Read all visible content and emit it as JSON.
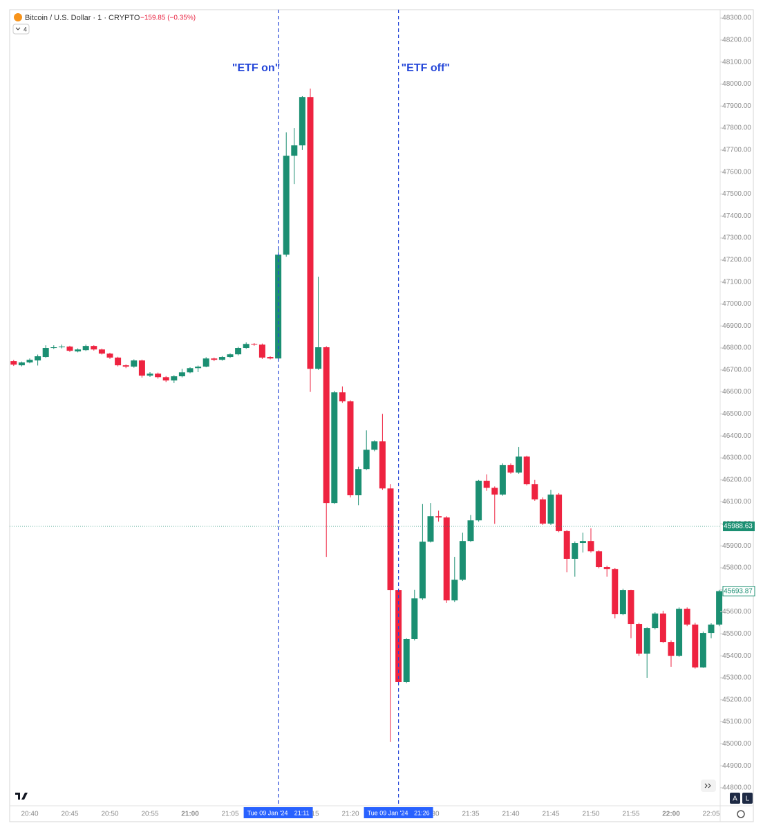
{
  "chart_data": {
    "type": "candlestick",
    "title": "Bitcoin / U.S. Dollar · 1 · CRYPTO",
    "change": "−159.85 (−0.35%)",
    "indicator_count": "4",
    "up_color": "#1b8f72",
    "down_color": "#ee2340",
    "categories": [
      null,
      null,
      "20:40",
      null,
      null,
      null,
      null,
      "20:45",
      null,
      null,
      null,
      null,
      "20:50",
      null,
      null,
      null,
      null,
      "20:55",
      null,
      null,
      null,
      null,
      "21:00",
      null,
      null,
      null,
      null,
      "21:05",
      null,
      null,
      null,
      null,
      "21:10",
      null,
      null,
      null,
      null,
      "21:15",
      null,
      null,
      null,
      null,
      "21:20",
      null,
      null,
      null,
      null,
      "21:25",
      null,
      null,
      null,
      null,
      "21:30",
      null,
      null,
      null,
      null,
      "21:35",
      null,
      null,
      null,
      null,
      "21:40",
      null,
      null,
      null,
      null,
      "21:45",
      null,
      null,
      null,
      null,
      "21:50",
      null,
      null,
      null,
      null,
      "21:55",
      null,
      null,
      null,
      null,
      "22:00",
      null,
      null,
      null,
      null,
      "22:05",
      null
    ],
    "open": [
      46740,
      46721,
      46734,
      46743,
      46759,
      46800,
      46803,
      46806,
      46784,
      46790,
      46809,
      46793,
      46774,
      46756,
      46721,
      46715,
      46743,
      46674,
      46683,
      46667,
      46652,
      46671,
      46689,
      46708,
      46715,
      46752,
      46746,
      46759,
      46771,
      46800,
      46818,
      46815,
      46759,
      46752,
      47224,
      47674,
      47721,
      47941,
      46705,
      46803,
      46095,
      46598,
      46557,
      46130,
      46249,
      46337,
      46375,
      46161,
      45699,
      45281,
      45476,
      45661,
      45919,
      46035,
      46029,
      45652,
      45746,
      45922,
      46016,
      46196,
      46164,
      46133,
      46268,
      46233,
      46306,
      46180,
      46111,
      46001,
      46133,
      45967,
      45841,
      45913,
      45922,
      45875,
      45803,
      45794,
      45589,
      45699,
      45545,
      45410,
      45526,
      45592,
      45463,
      45400,
      45614,
      45542,
      45347,
      45504,
      45542
    ],
    "high": [
      46745,
      46738,
      46752,
      46770,
      46812,
      46812,
      46815,
      46810,
      46798,
      46815,
      46812,
      46797,
      46778,
      46760,
      46725,
      46748,
      46747,
      46690,
      46688,
      46672,
      46676,
      46705,
      46712,
      46720,
      46758,
      46756,
      46763,
      46775,
      46805,
      46825,
      46822,
      46820,
      46762,
      47250,
      47780,
      47800,
      47945,
      47979,
      47124,
      46808,
      46605,
      46625,
      46562,
      46260,
      46425,
      46380,
      46500,
      46180,
      45705,
      45480,
      45700,
      46090,
      46095,
      46060,
      46035,
      45850,
      45960,
      46040,
      46200,
      46225,
      46170,
      46275,
      46275,
      46350,
      46310,
      46200,
      46120,
      46155,
      46140,
      45972,
      45920,
      45960,
      45980,
      45880,
      45810,
      45800,
      45705,
      45700,
      45550,
      45530,
      45598,
      45605,
      45470,
      45620,
      45620,
      45550,
      45510,
      45548,
      45700
    ],
    "low": [
      46718,
      46716,
      46730,
      46720,
      46755,
      46795,
      46798,
      46782,
      46780,
      46786,
      46788,
      46770,
      46750,
      46716,
      46708,
      46710,
      46665,
      46668,
      46660,
      46645,
      46640,
      46666,
      46685,
      46690,
      46712,
      46740,
      46742,
      46755,
      46766,
      46796,
      46810,
      46750,
      46748,
      46748,
      47215,
      47545,
      47700,
      46600,
      46700,
      45850,
      46090,
      46550,
      46120,
      46085,
      46245,
      46330,
      46155,
      45008,
      45270,
      45276,
      45470,
      45655,
      45915,
      46010,
      45640,
      45645,
      45740,
      45918,
      46010,
      46150,
      46000,
      46128,
      46228,
      46228,
      46175,
      46105,
      45995,
      45995,
      45962,
      45780,
      45760,
      45870,
      45870,
      45798,
      45760,
      45570,
      45585,
      45480,
      45400,
      45300,
      45520,
      45458,
      45350,
      45395,
      45535,
      45342,
      45345,
      45480,
      45535
    ],
    "close": [
      46724,
      46734,
      46746,
      46762,
      46800,
      46803,
      46806,
      46787,
      46793,
      46809,
      46793,
      46774,
      46756,
      46721,
      46715,
      46743,
      46674,
      46683,
      46667,
      46652,
      46671,
      46689,
      46708,
      46715,
      46752,
      46746,
      46759,
      46771,
      46800,
      46818,
      46815,
      46756,
      46752,
      47224,
      47674,
      47721,
      47941,
      46705,
      46803,
      46095,
      46598,
      46557,
      46130,
      46249,
      46337,
      46375,
      46161,
      45699,
      45281,
      45476,
      45661,
      45919,
      46035,
      46029,
      45652,
      45746,
      45922,
      46016,
      46196,
      46164,
      46133,
      46268,
      46233,
      46306,
      46180,
      46111,
      46001,
      46133,
      45967,
      45841,
      45913,
      45922,
      45875,
      45803,
      45794,
      45589,
      45699,
      45545,
      45410,
      45526,
      45592,
      45463,
      45400,
      45614,
      45542,
      45347,
      45504,
      45542,
      45693.87
    ],
    "ylim": [
      44718,
      48338
    ],
    "yticks": [
      {
        "value": 44800,
        "label": "44800.00"
      },
      {
        "value": 44900,
        "label": "44900.00"
      },
      {
        "value": 45000,
        "label": "45000.00"
      },
      {
        "value": 45100,
        "label": "45100.00"
      },
      {
        "value": 45200,
        "label": "45200.00"
      },
      {
        "value": 45300,
        "label": "45300.00"
      },
      {
        "value": 45400,
        "label": "45400.00"
      },
      {
        "value": 45500,
        "label": "45500.00"
      },
      {
        "value": 45600,
        "label": "45600.00"
      },
      {
        "value": 45700,
        "label": "45700.00"
      },
      {
        "value": 45800,
        "label": "45800.00"
      },
      {
        "value": 45900,
        "label": "45900.00"
      },
      {
        "value": 46000,
        "label": "46000.00"
      },
      {
        "value": 46100,
        "label": "46100.00"
      },
      {
        "value": 46200,
        "label": "46200.00"
      },
      {
        "value": 46300,
        "label": "46300.00"
      },
      {
        "value": 46400,
        "label": "46400.00"
      },
      {
        "value": 46500,
        "label": "46500.00"
      },
      {
        "value": 46600,
        "label": "46600.00"
      },
      {
        "value": 46700,
        "label": "46700.00"
      },
      {
        "value": 46800,
        "label": "46800.00"
      },
      {
        "value": 46900,
        "label": "46900.00"
      },
      {
        "value": 47000,
        "label": "47000.00"
      },
      {
        "value": 47100,
        "label": "47100.00"
      },
      {
        "value": 47200,
        "label": "47200.00"
      },
      {
        "value": 47300,
        "label": "47300.00"
      },
      {
        "value": 47400,
        "label": "47400.00"
      },
      {
        "value": 47500,
        "label": "47500.00"
      },
      {
        "value": 47600,
        "label": "47600.00"
      },
      {
        "value": 47700,
        "label": "47700.00"
      },
      {
        "value": 47800,
        "label": "47800.00"
      },
      {
        "value": 47900,
        "label": "47900.00"
      },
      {
        "value": 48000,
        "label": "48000.00"
      },
      {
        "value": 48100,
        "label": "48100.00"
      },
      {
        "value": 48200,
        "label": "48200.00"
      },
      {
        "value": 48300,
        "label": "48300.00"
      }
    ],
    "price_line": 45988.63,
    "last_price": 45693.87,
    "markers": [
      {
        "label": "\"ETF on\"",
        "date": "Tue 09 Jan '24",
        "time": "21:11",
        "color": "#2446d8"
      },
      {
        "label": "\"ETF off\"",
        "date": "Tue 09 Jan '24",
        "time": "21:26",
        "color": "#2446d8"
      }
    ],
    "scale_buttons": [
      "A",
      "L"
    ]
  }
}
